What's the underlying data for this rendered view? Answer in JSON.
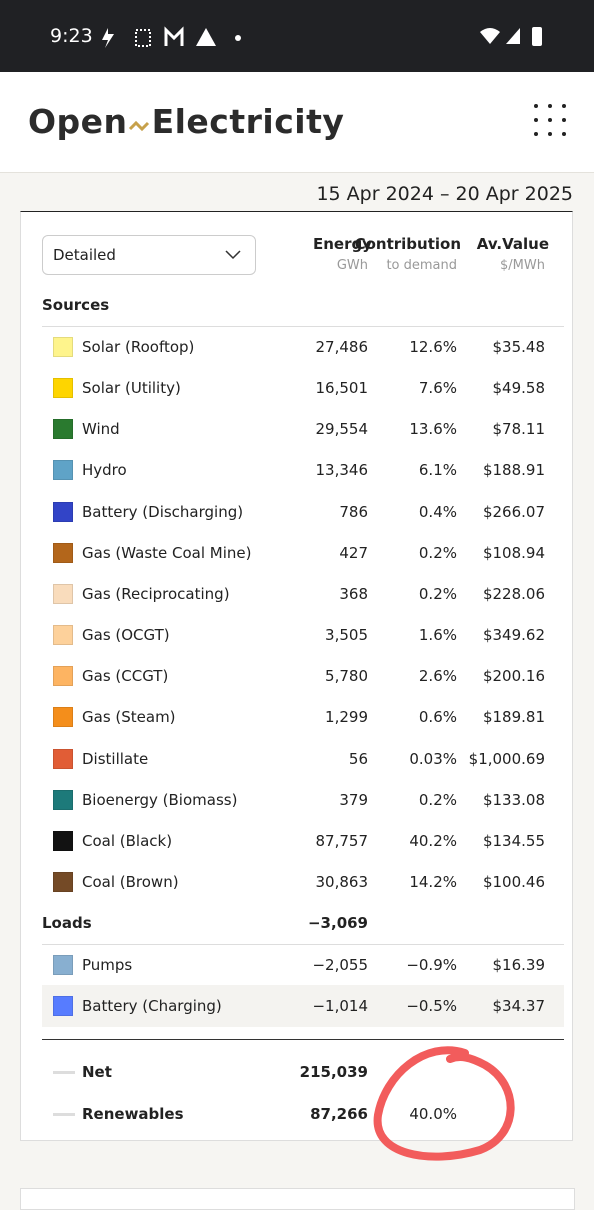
{
  "status_bar": {
    "time": "9:23"
  },
  "header": {
    "logo_left": "Open",
    "logo_right": "Electricity"
  },
  "date_range": "15 Apr 2024 – 20 Apr 2025",
  "dropdown": "Detailed",
  "columns": [
    {
      "title": "Energy",
      "unit": "GWh"
    },
    {
      "title": "Contribution",
      "unit": "to demand"
    },
    {
      "title": "Av.Value",
      "unit": "$/MWh"
    }
  ],
  "sources": {
    "label": "Sources",
    "rows": [
      {
        "name": "Solar (Rooftop)",
        "energy": "27,486",
        "contribution": "12.6%",
        "value": "$35.48",
        "color": "#fef48c"
      },
      {
        "name": "Solar (Utility)",
        "energy": "16,501",
        "contribution": "7.6%",
        "value": "$49.58",
        "color": "#fed500"
      },
      {
        "name": "Wind",
        "energy": "29,554",
        "contribution": "13.6%",
        "value": "$78.11",
        "color": "#2a7a2f"
      },
      {
        "name": "Hydro",
        "energy": "13,346",
        "contribution": "6.1%",
        "value": "$188.91",
        "color": "#5fa3c7"
      },
      {
        "name": "Battery (Discharging)",
        "energy": "786",
        "contribution": "0.4%",
        "value": "$266.07",
        "color": "#3244c7"
      },
      {
        "name": "Gas (Waste Coal Mine)",
        "energy": "427",
        "contribution": "0.2%",
        "value": "$108.94",
        "color": "#b3661b"
      },
      {
        "name": "Gas (Reciprocating)",
        "energy": "368",
        "contribution": "0.2%",
        "value": "$228.06",
        "color": "#f9dcbc"
      },
      {
        "name": "Gas (OCGT)",
        "energy": "3,505",
        "contribution": "1.6%",
        "value": "$349.62",
        "color": "#fdd19b"
      },
      {
        "name": "Gas (CCGT)",
        "energy": "5,780",
        "contribution": "2.6%",
        "value": "$200.16",
        "color": "#fdb462"
      },
      {
        "name": "Gas (Steam)",
        "energy": "1,299",
        "contribution": "0.6%",
        "value": "$189.81",
        "color": "#f48e1b"
      },
      {
        "name": "Distillate",
        "energy": "56",
        "contribution": "0.03%",
        "value": "$1,000.69",
        "color": "#e15d36"
      },
      {
        "name": "Bioenergy (Biomass)",
        "energy": "379",
        "contribution": "0.2%",
        "value": "$133.08",
        "color": "#1d7a7a"
      },
      {
        "name": "Coal (Black)",
        "energy": "87,757",
        "contribution": "40.2%",
        "value": "$134.55",
        "color": "#121212"
      },
      {
        "name": "Coal (Brown)",
        "energy": "30,863",
        "contribution": "14.2%",
        "value": "$100.46",
        "color": "#744a26"
      }
    ]
  },
  "loads": {
    "label": "Loads",
    "energy": "−3,069",
    "rows": [
      {
        "name": "Pumps",
        "energy": "−2,055",
        "contribution": "−0.9%",
        "value": "$16.39",
        "color": "#88afd0"
      },
      {
        "name": "Battery (Charging)",
        "energy": "−1,014",
        "contribution": "−0.5%",
        "value": "$34.37",
        "color": "#577cff"
      }
    ]
  },
  "totals": [
    {
      "name": "Net",
      "energy": "215,039"
    },
    {
      "name": "Renewables",
      "energy": "87,266",
      "contribution": "40.0%"
    }
  ]
}
